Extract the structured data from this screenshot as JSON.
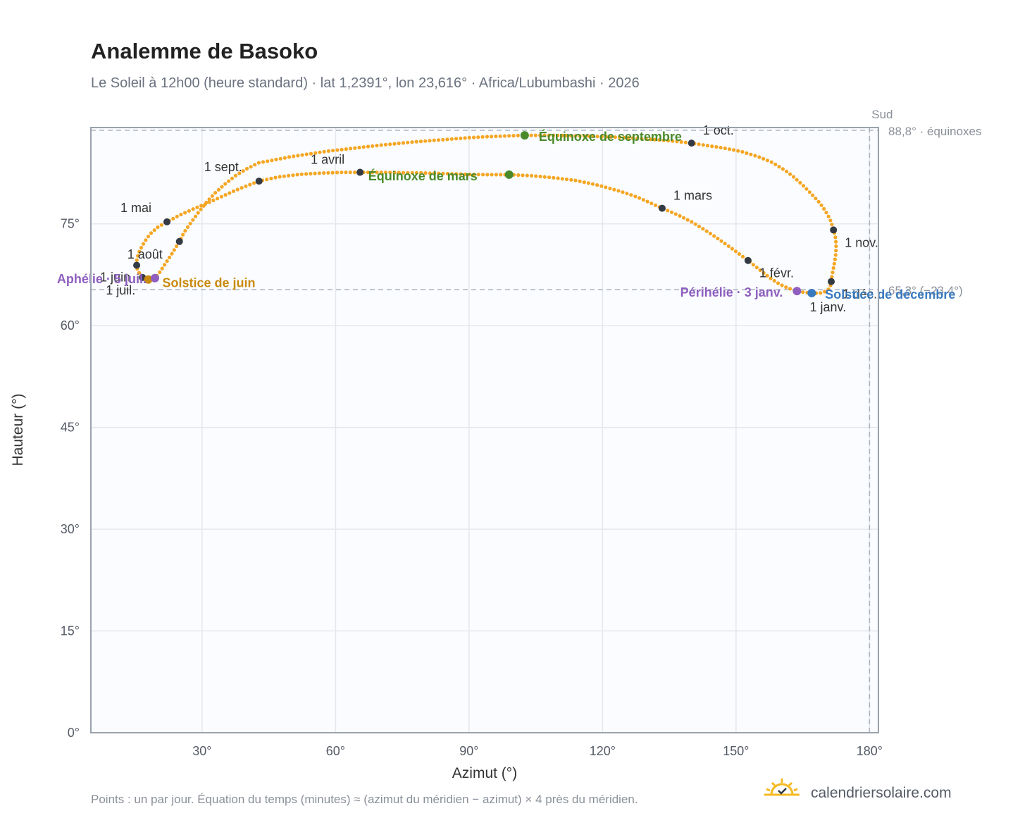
{
  "header": {
    "title": "Analemme de Basoko",
    "subtitle": "Le Soleil à 12h00 (heure standard) · lat 1,2391°, lon 23,616° · Africa/Lubumbashi · 2026"
  },
  "footer": {
    "note": "Points : un par jour. Équation du temps (minutes) ≈ (azimut du méridien − azimut) × 4 près du méridien.",
    "brand": "calendriersolaire.com"
  },
  "colors": {
    "curve": "#f5a623",
    "month_marker": "#333a44",
    "equinox": "#4a8a2a",
    "june_solstice": "#c98a0e",
    "december_solstice": "#3a7bbf",
    "apsis": "#8e5fbf",
    "grid": "#e5e7eb",
    "plot_bg": "#fafcff",
    "frame": "#9aa3ad",
    "reference": "#aab3bd"
  },
  "chart_data": {
    "type": "scatter",
    "title": "Analemme de Basoko",
    "xlabel": "Azimut (°)",
    "ylabel": "Hauteur (°)",
    "xlim": [
      5,
      182
    ],
    "ylim": [
      0,
      89.2
    ],
    "x_ticks": [
      30,
      60,
      90,
      120,
      150,
      180
    ],
    "x_tick_labels": [
      "30°",
      "60°",
      "90°",
      "120°",
      "150°",
      "180°"
    ],
    "y_ticks": [
      0,
      15,
      30,
      45,
      60,
      75
    ],
    "y_tick_labels": [
      "0°",
      "15°",
      "30°",
      "45°",
      "60°",
      "75°"
    ],
    "grid": true,
    "reference_lines": [
      {
        "orientation": "horizontal",
        "value": 88.8,
        "label": "88,8° · équinoxes"
      },
      {
        "orientation": "horizontal",
        "value": 65.3,
        "label": "65,3° (−23,4°)"
      },
      {
        "orientation": "vertical",
        "value": 180,
        "label": "Sud"
      }
    ],
    "series": [
      {
        "name": "",
        "points": [
          [
            167.0,
            64.8
          ],
          [
            168.0,
            64.8
          ],
          [
            168.8,
            64.8
          ],
          [
            169.6,
            64.9
          ],
          [
            170.2,
            65.1
          ],
          [
            170.7,
            65.3
          ],
          [
            171.0,
            65.6
          ],
          [
            171.3,
            66.0
          ],
          [
            171.4,
            66.5
          ],
          [
            171.6,
            67.5
          ],
          [
            171.9,
            68.5
          ],
          [
            172.2,
            69.5
          ],
          [
            172.4,
            70.5
          ],
          [
            172.5,
            71.6
          ],
          [
            172.4,
            72.7
          ],
          [
            172.2,
            73.5
          ],
          [
            171.9,
            74.1
          ],
          [
            171.3,
            75.4
          ],
          [
            170.7,
            76.2
          ],
          [
            169.9,
            77.1
          ],
          [
            168.8,
            78.1
          ],
          [
            167.1,
            79.3
          ],
          [
            165.0,
            80.7
          ],
          [
            163.0,
            81.9
          ],
          [
            161.0,
            82.9
          ],
          [
            158.0,
            84.1
          ],
          [
            155.0,
            84.9
          ],
          [
            151.0,
            85.7
          ],
          [
            147.0,
            86.2
          ],
          [
            143.0,
            86.6
          ],
          [
            140.0,
            86.9
          ],
          [
            136.0,
            87.2
          ],
          [
            132.0,
            87.4
          ],
          [
            128.0,
            87.6
          ],
          [
            124.0,
            87.75
          ],
          [
            120.0,
            87.85
          ],
          [
            116.0,
            87.95
          ],
          [
            112.0,
            88.0
          ],
          [
            108.0,
            88.05
          ],
          [
            105.0,
            88.05
          ],
          [
            102.5,
            88.05
          ],
          [
            98.0,
            87.95
          ],
          [
            94.0,
            87.85
          ],
          [
            90.0,
            87.7
          ],
          [
            86.0,
            87.5
          ],
          [
            82.0,
            87.3
          ],
          [
            78.0,
            87.1
          ],
          [
            74.0,
            86.85
          ],
          [
            70.0,
            86.6
          ],
          [
            66.0,
            86.3
          ],
          [
            62.0,
            86.0
          ],
          [
            58.0,
            85.7
          ],
          [
            54.0,
            85.3
          ],
          [
            50.0,
            84.9
          ],
          [
            46.0,
            84.4
          ],
          [
            42.7,
            84.0
          ],
          [
            40.0,
            83.1
          ],
          [
            37.5,
            82.1
          ],
          [
            35.2,
            80.9
          ],
          [
            33.0,
            79.6
          ],
          [
            31.0,
            78.2
          ],
          [
            29.3,
            76.8
          ],
          [
            27.5,
            75.2
          ],
          [
            26.0,
            73.8
          ],
          [
            24.9,
            72.4
          ],
          [
            23.5,
            70.9
          ],
          [
            22.2,
            69.6
          ],
          [
            21.1,
            68.5
          ],
          [
            20.2,
            67.6
          ],
          [
            19.4,
            67.0
          ],
          [
            18.6,
            66.8
          ],
          [
            17.9,
            66.8
          ],
          [
            17.2,
            66.9
          ],
          [
            16.6,
            67.1
          ],
          [
            16.0,
            67.6
          ],
          [
            15.5,
            68.2
          ],
          [
            15.2,
            68.9
          ],
          [
            15.4,
            70.0
          ],
          [
            16.0,
            71.1
          ],
          [
            17.0,
            72.3
          ],
          [
            18.3,
            73.5
          ],
          [
            20.0,
            74.5
          ],
          [
            22.1,
            75.3
          ],
          [
            25.0,
            76.3
          ],
          [
            28.0,
            77.2
          ],
          [
            31.0,
            78.0
          ],
          [
            34.0,
            78.9
          ],
          [
            37.0,
            79.8
          ],
          [
            40.0,
            80.6
          ],
          [
            42.8,
            81.3
          ],
          [
            47.0,
            81.9
          ],
          [
            52.0,
            82.3
          ],
          [
            57.0,
            82.5
          ],
          [
            62.0,
            82.6
          ],
          [
            65.5,
            82.6
          ],
          [
            70.0,
            82.6
          ],
          [
            75.0,
            82.55
          ],
          [
            80.0,
            82.5
          ],
          [
            85.0,
            82.4
          ],
          [
            90.0,
            82.3
          ],
          [
            94.0,
            82.25
          ],
          [
            99.0,
            82.25
          ],
          [
            104.0,
            82.1
          ],
          [
            109.0,
            81.8
          ],
          [
            114.0,
            81.4
          ],
          [
            119.0,
            80.7
          ],
          [
            124.0,
            79.8
          ],
          [
            128.0,
            78.9
          ],
          [
            133.4,
            77.3
          ],
          [
            137.0,
            76.3
          ],
          [
            140.0,
            75.3
          ],
          [
            143.0,
            74.1
          ],
          [
            146.0,
            72.8
          ],
          [
            149.0,
            71.4
          ],
          [
            152.7,
            69.6
          ],
          [
            155.0,
            68.4
          ],
          [
            157.5,
            67.1
          ],
          [
            159.8,
            66.1
          ],
          [
            161.8,
            65.5
          ],
          [
            163.7,
            65.1
          ],
          [
            165.3,
            64.9
          ],
          [
            167.0,
            64.8
          ]
        ]
      }
    ],
    "month_markers": [
      {
        "label": "1 janv.",
        "x": 167.2,
        "y": 64.8
      },
      {
        "label": "1 févr.",
        "x": 152.7,
        "y": 69.6
      },
      {
        "label": "1 mars",
        "x": 133.4,
        "y": 77.3
      },
      {
        "label": "1 avril",
        "x": 65.5,
        "y": 82.6
      },
      {
        "label": "1 mai",
        "x": 22.1,
        "y": 75.3
      },
      {
        "label": "1 juin",
        "x": 15.3,
        "y": 68.9
      },
      {
        "label": "1 juil.",
        "x": 16.6,
        "y": 67.1
      },
      {
        "label": "1 août",
        "x": 24.9,
        "y": 72.4
      },
      {
        "label": "1 sept.",
        "x": 42.8,
        "y": 81.3
      },
      {
        "label": "1 oct.",
        "x": 140.0,
        "y": 86.9
      },
      {
        "label": "1 nov.",
        "x": 171.9,
        "y": 74.1
      },
      {
        "label": "1 déc.",
        "x": 171.4,
        "y": 66.5
      }
    ],
    "events": [
      {
        "label": "Équinoxe de mars",
        "x": 99.0,
        "y": 82.25,
        "color": "#4a8a2a"
      },
      {
        "label": "Équinoxe de septembre",
        "x": 102.5,
        "y": 88.05,
        "color": "#4a8a2a"
      },
      {
        "label": "Solstice de juin",
        "x": 17.9,
        "y": 66.8,
        "color": "#c98a0e"
      },
      {
        "label": "Solstice de décembre",
        "x": 167.0,
        "y": 64.8,
        "color": "#3a7bbf"
      },
      {
        "label": "Aphélie · 5 juil.",
        "x": 19.4,
        "y": 67.0,
        "color": "#8e5fbf"
      },
      {
        "label": "Périhélie · 3 janv.",
        "x": 163.7,
        "y": 65.1,
        "color": "#8e5fbf"
      }
    ]
  }
}
